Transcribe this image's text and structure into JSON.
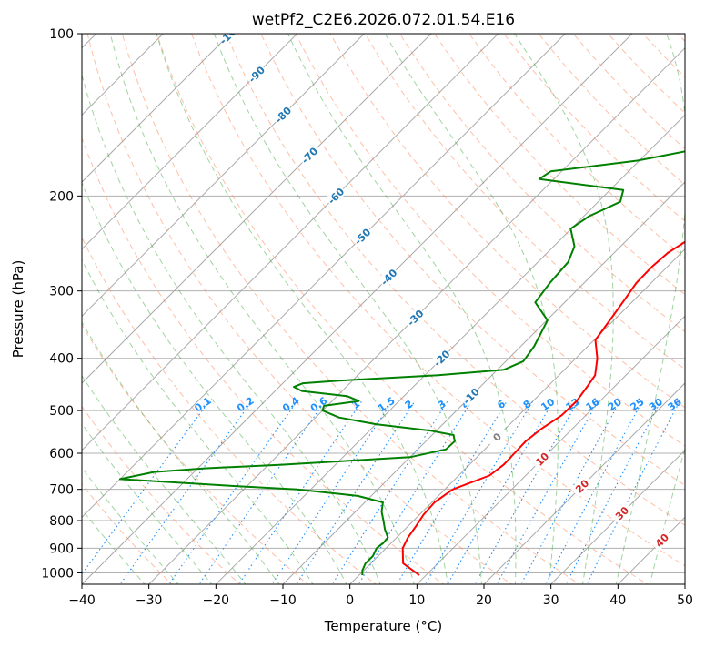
{
  "chart_data": {
    "type": "line",
    "title": "wetPf2_C2E6.2026.072.01.54.E16",
    "xlabel": "Temperature (°C)",
    "ylabel": "Pressure (hPa)",
    "xlim": [
      -40,
      50
    ],
    "ylim": [
      1050,
      100
    ],
    "y_scale": "log",
    "grid": true,
    "x_ticks": [
      -40,
      -30,
      -20,
      -10,
      0,
      10,
      20,
      30,
      40,
      50
    ],
    "y_ticks": [
      100,
      200,
      300,
      400,
      500,
      600,
      700,
      800,
      900,
      1000
    ],
    "colors": {
      "temperature": "#ff0000",
      "dewpoint": "#008000",
      "dry_adiabat": "#ff7f50",
      "moist_adiabat": "#2ca02c",
      "mixing_ratio": "#1e90ff",
      "isotherm": "#808080",
      "isotherm_label": "#1f77b4",
      "warm_label": "#d62728"
    },
    "series": [
      {
        "key": "temperature",
        "p": [
          1010,
          960,
          900,
          860,
          820,
          780,
          740,
          700,
          660,
          630,
          600,
          570,
          540,
          510,
          480,
          450,
          430,
          400,
          370,
          340,
          310,
          290,
          270,
          255,
          240,
          225,
          210,
          195,
          180,
          165,
          150,
          135,
          120,
          110,
          100
        ],
        "t": [
          9,
          4.8,
          2.5,
          1.7,
          1.2,
          0.6,
          0.4,
          1.2,
          4.6,
          5.1,
          5,
          4.9,
          5.4,
          6.4,
          6.5,
          5.9,
          5.4,
          3.2,
          0.2,
          -0.6,
          -1.5,
          -2.2,
          -2.3,
          -2,
          -0.8,
          1.3,
          3.9,
          7.9,
          9,
          10.4,
          12.4,
          14.9,
          18,
          19.3,
          19.7
        ]
      },
      {
        "key": "dewpoint",
        "p": [
          1010,
          990,
          960,
          930,
          900,
          880,
          860,
          830,
          800,
          770,
          740,
          720,
          700,
          690,
          670,
          650,
          640,
          630,
          610,
          590,
          570,
          555,
          545,
          530,
          515,
          500,
          490,
          480,
          470,
          460,
          452,
          445,
          440,
          430,
          420,
          405,
          380,
          340,
          315,
          290,
          265,
          248,
          230,
          218,
          205,
          195,
          186,
          180,
          172,
          163,
          155,
          145,
          133,
          120,
          110,
          100
        ],
        "t": [
          0.5,
          -0.2,
          -0.8,
          -0.8,
          -1.4,
          -1.2,
          -1.3,
          -3,
          -4.5,
          -6.1,
          -7.3,
          -12,
          -22,
          -32,
          -50,
          -46,
          -39,
          -28,
          -10,
          -5.8,
          -5.7,
          -6.8,
          -10.8,
          -20,
          -26.5,
          -30,
          -30.5,
          -26,
          -28.5,
          -36,
          -37.8,
          -37,
          -32,
          -18,
          -9,
          -7.4,
          -8,
          -9.9,
          -14.4,
          -15.1,
          -15.5,
          -16.9,
          -20.1,
          -19.2,
          -16.7,
          -18,
          -32.2,
          -31.6,
          -20.3,
          -12.5,
          -11.3,
          -10.2,
          -8.3,
          -8.3,
          -7.5,
          -1.5
        ]
      }
    ],
    "isotherm_labels": [
      -100,
      -90,
      -80,
      -70,
      -60,
      -50,
      -40,
      -30,
      -20,
      -10,
      0,
      10,
      20,
      30,
      40
    ],
    "mixing_ratio_labels": [
      0.1,
      0.2,
      0.4,
      0.6,
      1,
      1.5,
      2,
      3,
      4,
      6,
      8,
      10,
      13,
      16,
      20,
      25,
      30,
      36
    ]
  }
}
